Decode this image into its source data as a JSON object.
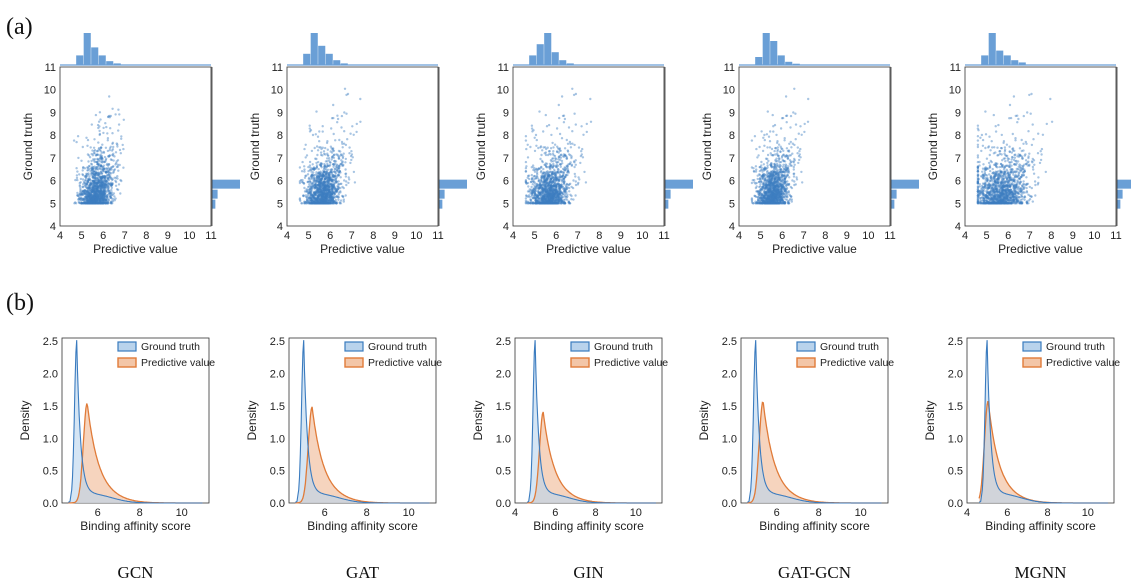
{
  "figure": {
    "panel_a_label": "(a)",
    "panel_b_label": "(b)"
  },
  "colors": {
    "ground_truth": "#3a7bbf",
    "ground_truth_fill": "#b9d3ec",
    "predictive": "#e07b39",
    "predictive_fill": "#f3c6a8",
    "histogram": "#6a9fd6",
    "scatter": "#3e7fc1"
  },
  "chart_data": [
    {
      "type": "scatter",
      "model": "GCN",
      "xlabel": "Predictive value",
      "ylabel": "Ground truth",
      "xlim": [
        4,
        11
      ],
      "ylim": [
        4,
        11
      ],
      "xticks": [
        "4",
        "5",
        "6",
        "7",
        "8",
        "9",
        "10",
        "11"
      ],
      "yticks": [
        "4",
        "5",
        "6",
        "7",
        "8",
        "9",
        "10",
        "11"
      ],
      "grid": false,
      "pred_spread": 0.55,
      "pred_center": 5.6,
      "pred_max": 7.3,
      "top_hist": [
        0.3,
        1.0,
        0.55,
        0.3,
        0.12,
        0.05
      ],
      "right_hist": [
        1.0,
        0.2,
        0.12
      ]
    },
    {
      "type": "scatter",
      "model": "GAT",
      "xlabel": "Predictive value",
      "ylabel": "Ground truth",
      "xlim": [
        4,
        11
      ],
      "ylim": [
        4,
        11
      ],
      "xticks": [
        "4",
        "5",
        "6",
        "7",
        "8",
        "9",
        "10",
        "11"
      ],
      "yticks": [
        "4",
        "5",
        "6",
        "7",
        "8",
        "9",
        "10",
        "11"
      ],
      "grid": false,
      "pred_spread": 0.6,
      "pred_center": 5.6,
      "pred_max": 8.5,
      "top_hist": [
        0.35,
        1.0,
        0.6,
        0.35,
        0.15,
        0.05
      ],
      "right_hist": [
        1.0,
        0.2,
        0.12
      ]
    },
    {
      "type": "scatter",
      "model": "GIN",
      "xlabel": "Predictive value",
      "ylabel": "Ground truth",
      "xlim": [
        4,
        11
      ],
      "ylim": [
        4,
        11
      ],
      "xticks": [
        "4",
        "5",
        "6",
        "7",
        "8",
        "9",
        "10",
        "11"
      ],
      "yticks": [
        "4",
        "5",
        "6",
        "7",
        "8",
        "9",
        "10",
        "11"
      ],
      "grid": false,
      "pred_spread": 0.7,
      "pred_center": 5.6,
      "pred_max": 8.6,
      "top_hist": [
        0.3,
        0.65,
        1.0,
        0.4,
        0.15,
        0.05
      ],
      "right_hist": [
        1.0,
        0.2,
        0.12
      ]
    },
    {
      "type": "scatter",
      "model": "GAT-GCN",
      "xlabel": "Predictive value",
      "ylabel": "Ground truth",
      "xlim": [
        4,
        11
      ],
      "ylim": [
        4,
        11
      ],
      "xticks": [
        "4",
        "5",
        "6",
        "7",
        "8",
        "9",
        "10",
        "11"
      ],
      "yticks": [
        "4",
        "5",
        "6",
        "7",
        "8",
        "9",
        "10",
        "11"
      ],
      "grid": false,
      "pred_spread": 0.55,
      "pred_center": 5.5,
      "pred_max": 8.3,
      "top_hist": [
        0.25,
        1.0,
        0.75,
        0.3,
        0.1,
        0.04
      ],
      "right_hist": [
        1.0,
        0.2,
        0.12
      ]
    },
    {
      "type": "scatter",
      "model": "MGNN",
      "xlabel": "Predictive value",
      "ylabel": "Ground truth",
      "xlim": [
        4,
        11
      ],
      "ylim": [
        4,
        11
      ],
      "xticks": [
        "4",
        "5",
        "6",
        "7",
        "8",
        "9",
        "10",
        "11"
      ],
      "yticks": [
        "4",
        "5",
        "6",
        "7",
        "8",
        "9",
        "10",
        "11"
      ],
      "grid": false,
      "pred_spread": 0.9,
      "pred_center": 5.6,
      "pred_max": 9.2,
      "top_hist": [
        0.3,
        1.0,
        0.45,
        0.3,
        0.15,
        0.08
      ],
      "right_hist": [
        1.0,
        0.2,
        0.12
      ]
    },
    {
      "type": "area",
      "model": "GCN",
      "xlabel": "Binding affinity score",
      "ylabel": "Density",
      "xlim": [
        4.3,
        11.3
      ],
      "ylim": [
        0,
        2.55
      ],
      "xticks": [
        "6",
        "8",
        "10"
      ],
      "xtick_values": [
        6,
        8,
        10
      ],
      "yticks": [
        "0.0",
        "0.5",
        "1.0",
        "1.5",
        "2.0",
        "2.5"
      ],
      "legend": [
        "Ground truth",
        "Predictive value"
      ],
      "legend_position": "top-right",
      "series": [
        {
          "name": "Ground truth",
          "peak_x": 5.0,
          "peak_y": 2.43
        },
        {
          "name": "Predictive value",
          "peak_x": 5.5,
          "peak_y": 1.52
        }
      ]
    },
    {
      "type": "area",
      "model": "GAT",
      "xlabel": "Binding affinity score",
      "ylabel": "Density",
      "xlim": [
        4.3,
        11.3
      ],
      "ylim": [
        0,
        2.55
      ],
      "xticks": [
        "6",
        "8",
        "10"
      ],
      "xtick_values": [
        6,
        8,
        10
      ],
      "yticks": [
        "0.0",
        "0.5",
        "1.0",
        "1.5",
        "2.0",
        "2.5"
      ],
      "legend": [
        "Ground truth",
        "Predictive value"
      ],
      "legend_position": "top-right",
      "series": [
        {
          "name": "Ground truth",
          "peak_x": 5.0,
          "peak_y": 2.43
        },
        {
          "name": "Predictive value",
          "peak_x": 5.4,
          "peak_y": 1.46
        }
      ]
    },
    {
      "type": "area",
      "model": "GIN",
      "xlabel": "Binding affinity score",
      "ylabel": "Density",
      "xlim": [
        4,
        11.3
      ],
      "ylim": [
        0,
        2.55
      ],
      "xticks": [
        "4",
        "6",
        "8",
        "10"
      ],
      "xtick_values": [
        4,
        6,
        8,
        10
      ],
      "yticks": [
        "0.0",
        "0.5",
        "1.0",
        "1.5",
        "2.0",
        "2.5"
      ],
      "legend": [
        "Ground truth",
        "Predictive value"
      ],
      "legend_position": "top-right",
      "series": [
        {
          "name": "Ground truth",
          "peak_x": 5.0,
          "peak_y": 2.43
        },
        {
          "name": "Predictive value",
          "peak_x": 5.4,
          "peak_y": 1.38
        }
      ]
    },
    {
      "type": "area",
      "model": "GAT-GCN",
      "xlabel": "Binding affinity score",
      "ylabel": "Density",
      "xlim": [
        4.3,
        11.3
      ],
      "ylim": [
        0,
        2.55
      ],
      "xticks": [
        "6",
        "8",
        "10"
      ],
      "xtick_values": [
        6,
        8,
        10
      ],
      "yticks": [
        "0.0",
        "0.5",
        "1.0",
        "1.5",
        "2.0",
        "2.5"
      ],
      "legend": [
        "Ground truth",
        "Predictive value"
      ],
      "legend_position": "top-right",
      "series": [
        {
          "name": "Ground truth",
          "peak_x": 5.0,
          "peak_y": 2.43
        },
        {
          "name": "Predictive value",
          "peak_x": 5.35,
          "peak_y": 1.55
        }
      ]
    },
    {
      "type": "area",
      "model": "MGNN",
      "xlabel": "Binding affinity score",
      "ylabel": "Density",
      "xlim": [
        4,
        11.3
      ],
      "ylim": [
        0,
        2.55
      ],
      "xticks": [
        "4",
        "6",
        "8",
        "10"
      ],
      "xtick_values": [
        4,
        6,
        8,
        10
      ],
      "yticks": [
        "0.0",
        "0.5",
        "1.0",
        "1.5",
        "2.0",
        "2.5"
      ],
      "legend": [
        "Ground truth",
        "Predictive value"
      ],
      "legend_position": "top-right",
      "series": [
        {
          "name": "Ground truth",
          "peak_x": 5.0,
          "peak_y": 2.43
        },
        {
          "name": "Predictive value",
          "peak_x": 5.05,
          "peak_y": 1.55
        }
      ]
    }
  ]
}
